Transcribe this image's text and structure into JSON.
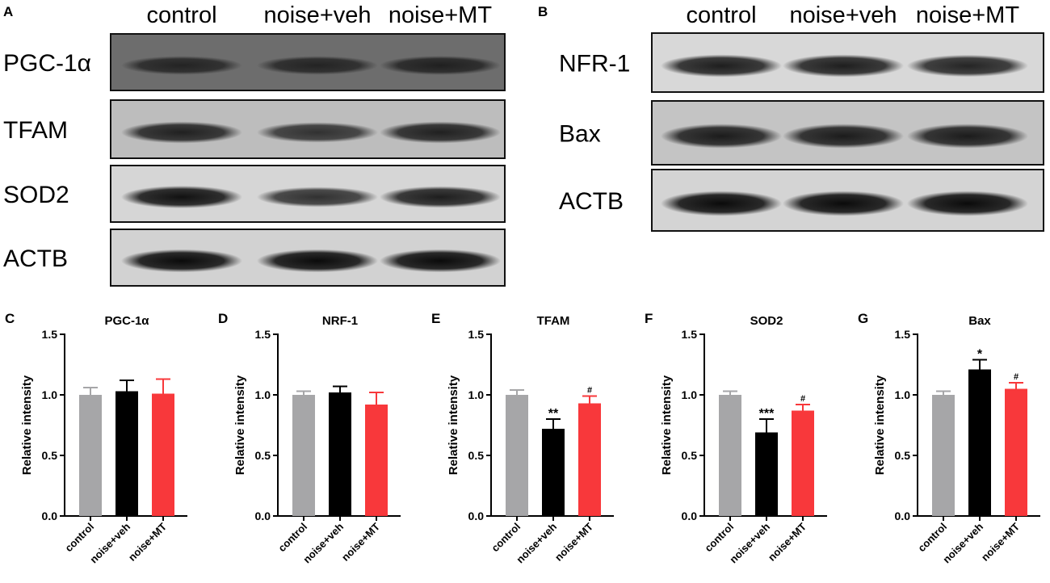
{
  "blot_panels": [
    {
      "letter": "A",
      "lanes": [
        "control",
        "noise+veh",
        "noise+MT"
      ],
      "rows": [
        {
          "label": "PGC-1α",
          "band_darkness": [
            0.55,
            0.55,
            0.6
          ],
          "background": "#6d6d6d"
        },
        {
          "label": "TFAM",
          "band_darkness": [
            0.8,
            0.65,
            0.8
          ],
          "background": "#bdbdbd"
        },
        {
          "label": "SOD2",
          "band_darkness": [
            0.95,
            0.7,
            0.85
          ],
          "background": "#d6d6d6"
        },
        {
          "label": "ACTB",
          "band_darkness": [
            1.0,
            1.0,
            1.0
          ],
          "background": "#d2d2d2"
        }
      ]
    },
    {
      "letter": "B",
      "lanes": [
        "control",
        "noise+veh",
        "noise+MT"
      ],
      "rows": [
        {
          "label": "NFR-1",
          "band_darkness": [
            0.85,
            0.85,
            0.8
          ],
          "background": "#d8d8d8"
        },
        {
          "label": "Bax",
          "band_darkness": [
            0.85,
            0.85,
            0.85
          ],
          "background": "#c4c4c4"
        },
        {
          "label": "ACTB",
          "band_darkness": [
            1.0,
            1.0,
            1.0
          ],
          "background": "#d4d4d4"
        }
      ]
    }
  ],
  "chart_data": [
    {
      "letter": "C",
      "type": "bar",
      "title": "PGC-1α",
      "ylabel": "Relative intensity",
      "ylim": [
        0,
        1.5
      ],
      "yticks": [
        "0.0",
        "0.5",
        "1.0",
        "1.5"
      ],
      "categories": [
        "control",
        "noise+veh",
        "noise+MT"
      ],
      "values": [
        1.0,
        1.03,
        1.01
      ],
      "errors": [
        0.06,
        0.09,
        0.12
      ],
      "sig": [
        "",
        "",
        ""
      ]
    },
    {
      "letter": "D",
      "type": "bar",
      "title": "NRF-1",
      "ylabel": "Relative intensity",
      "ylim": [
        0,
        1.5
      ],
      "yticks": [
        "0.0",
        "0.5",
        "1.0",
        "1.5"
      ],
      "categories": [
        "control",
        "noise+veh",
        "noise+MT"
      ],
      "values": [
        1.0,
        1.02,
        0.92
      ],
      "errors": [
        0.03,
        0.05,
        0.1
      ],
      "sig": [
        "",
        "",
        ""
      ]
    },
    {
      "letter": "E",
      "type": "bar",
      "title": "TFAM",
      "ylabel": "Relative intensity",
      "ylim": [
        0,
        1.5
      ],
      "yticks": [
        "0.0",
        "0.5",
        "1.0",
        "1.5"
      ],
      "categories": [
        "control",
        "noise+veh",
        "noise+MT"
      ],
      "values": [
        1.0,
        0.72,
        0.93
      ],
      "errors": [
        0.04,
        0.08,
        0.06
      ],
      "sig": [
        "",
        "**",
        "#"
      ]
    },
    {
      "letter": "F",
      "type": "bar",
      "title": "SOD2",
      "ylabel": "Relative intensity",
      "ylim": [
        0,
        1.5
      ],
      "yticks": [
        "0.0",
        "0.5",
        "1.0",
        "1.5"
      ],
      "categories": [
        "control",
        "noise+veh",
        "noise+MT"
      ],
      "values": [
        1.0,
        0.69,
        0.87
      ],
      "errors": [
        0.03,
        0.11,
        0.05
      ],
      "sig": [
        "",
        "***",
        "#"
      ]
    },
    {
      "letter": "G",
      "type": "bar",
      "title": "Bax",
      "ylabel": "Relative intensity",
      "ylim": [
        0,
        1.5
      ],
      "yticks": [
        "0.0",
        "0.5",
        "1.0",
        "1.5"
      ],
      "categories": [
        "control",
        "noise+veh",
        "noise+MT"
      ],
      "values": [
        1.0,
        1.21,
        1.05
      ],
      "errors": [
        0.03,
        0.08,
        0.05
      ],
      "sig": [
        "",
        "*",
        "#"
      ]
    }
  ],
  "colors": {
    "control": "#a6a6a8",
    "noise+veh": "#000000",
    "noise+MT": "#f8383b",
    "error_control": "#a6a6a8",
    "error_veh": "#000000",
    "error_mt": "#f8383b"
  }
}
